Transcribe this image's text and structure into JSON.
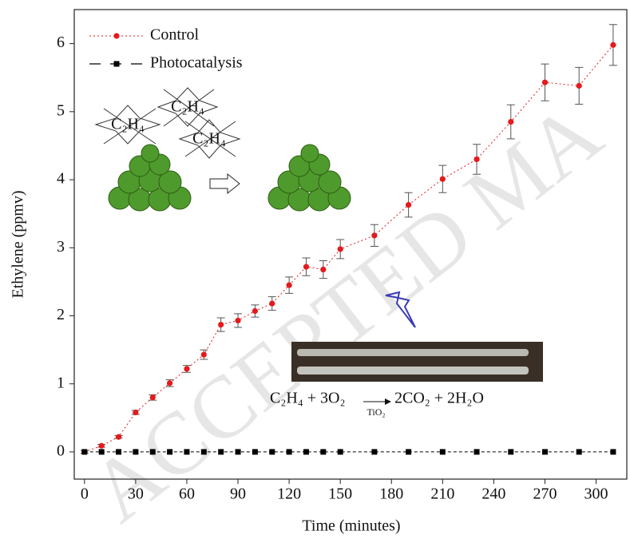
{
  "chart_data": {
    "type": "line",
    "xlabel": "Time (minutes)",
    "ylabel": "Ethylene (ppmv)",
    "x": [
      0,
      10,
      20,
      30,
      40,
      50,
      60,
      70,
      80,
      90,
      100,
      110,
      120,
      130,
      140,
      150,
      170,
      190,
      210,
      230,
      250,
      270,
      290,
      310
    ],
    "series": [
      {
        "name": "Control",
        "color": "#e41a1c",
        "values": [
          0,
          0.09,
          0.22,
          0.58,
          0.8,
          1.01,
          1.22,
          1.43,
          1.87,
          1.93,
          2.07,
          2.18,
          2.45,
          2.72,
          2.68,
          2.98,
          3.18,
          3.63,
          4.01,
          4.3,
          4.85,
          5.43,
          5.38,
          5.98
        ],
        "errors": [
          0.02,
          0.02,
          0.02,
          0.03,
          0.04,
          0.05,
          0.05,
          0.07,
          0.1,
          0.1,
          0.09,
          0.1,
          0.12,
          0.13,
          0.13,
          0.14,
          0.16,
          0.18,
          0.2,
          0.22,
          0.25,
          0.27,
          0.27,
          0.3
        ]
      },
      {
        "name": "Photocatalysis",
        "color": "#000000",
        "values": [
          0,
          0,
          0,
          0,
          0,
          0,
          0,
          0,
          0,
          0,
          0,
          0,
          0,
          0,
          0,
          0,
          0,
          0,
          0,
          0,
          0,
          0,
          0,
          0
        ]
      }
    ],
    "xlim": [
      -6,
      318
    ],
    "ylim": [
      -0.4,
      6.5
    ],
    "xticks": [
      0,
      30,
      60,
      90,
      120,
      150,
      180,
      210,
      240,
      270,
      300
    ],
    "yticks": [
      0,
      1,
      2,
      3,
      4,
      5,
      6
    ],
    "legend": "upper left",
    "annotations": {
      "molecule": "C₂H₄",
      "equation_left": "C₂H₄ + 3O₂",
      "catalyst": "TiO₂",
      "equation_right": "2CO₂ + 2H₂O",
      "watermark": "ACCEPTED MA"
    }
  }
}
